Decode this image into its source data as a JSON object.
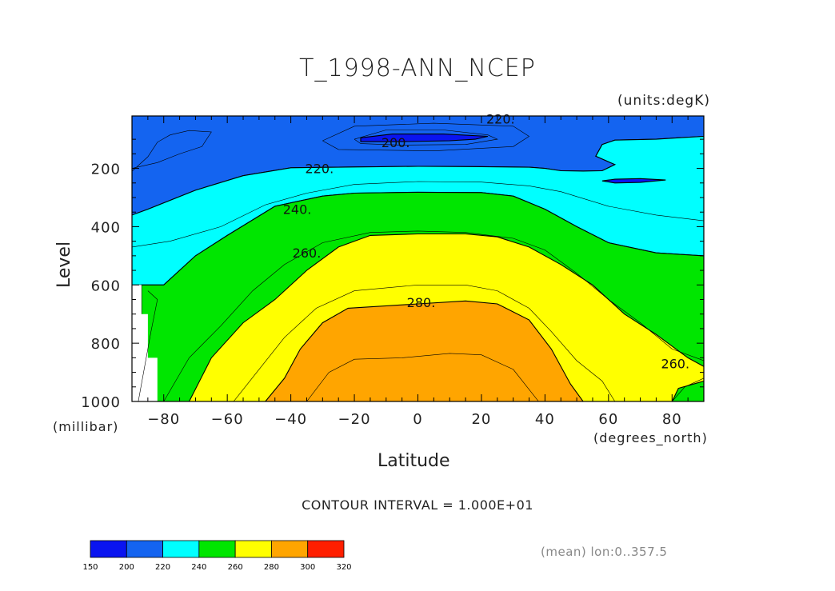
{
  "chart_data": {
    "type": "heatmap",
    "title": "T_1998-ANN_NCEP",
    "units_label": "(units:degK)",
    "xlabel": "Latitude",
    "ylabel": "Level",
    "x_units": "(degrees_north)",
    "y_units": "(millibar)",
    "xlim": [
      -90,
      90
    ],
    "ylim": [
      1000,
      20
    ],
    "x_ticks": [
      -80,
      -60,
      -40,
      -20,
      0,
      20,
      40,
      60,
      80
    ],
    "x_tick_labels": [
      "−80",
      "−60",
      "−40",
      "−20",
      "0",
      "20",
      "40",
      "60",
      "80"
    ],
    "y_ticks": [
      200,
      400,
      600,
      800,
      1000
    ],
    "y_tick_labels": [
      "200",
      "400",
      "600",
      "800",
      "1000"
    ],
    "contour_interval_label": "CONTOUR INTERVAL = 1.000E+01",
    "contour_labels": [
      {
        "text": "220.",
        "lat": 26,
        "lev": 30
      },
      {
        "text": "200.",
        "lat": -7,
        "lev": 110
      },
      {
        "text": "220.",
        "lat": -31,
        "lev": 200
      },
      {
        "text": "240.",
        "lat": -38,
        "lev": 340
      },
      {
        "text": "260.",
        "lat": -35,
        "lev": 490
      },
      {
        "text": "280.",
        "lat": 1,
        "lev": 660
      },
      {
        "text": "260.",
        "lat": 81,
        "lev": 870
      }
    ],
    "colorbar": {
      "levels": [
        150,
        200,
        220,
        240,
        260,
        280,
        300,
        320
      ],
      "level_labels": [
        "150",
        "200",
        "220",
        "240",
        "260",
        "280",
        "300",
        "320"
      ],
      "colors": [
        "#0a14f0",
        "#1464f0",
        "#00ffff",
        "#00e600",
        "#ffff00",
        "#ffa500",
        "#ff1e00"
      ]
    },
    "regions": [
      {
        "band": "<200",
        "color": "#0a14f0",
        "polygon": [
          [
            -18,
            95
          ],
          [
            -8,
            82
          ],
          [
            8,
            82
          ],
          [
            22,
            90
          ],
          [
            18,
            100
          ],
          [
            10,
            105
          ],
          [
            -5,
            108
          ],
          [
            -18,
            108
          ]
        ]
      },
      {
        "band": "<200",
        "color": "#0a14f0",
        "polygon": [
          [
            58,
            243
          ],
          [
            62,
            237
          ],
          [
            70,
            235
          ],
          [
            78,
            240
          ],
          [
            70,
            248
          ],
          [
            62,
            250
          ]
        ]
      },
      {
        "band": "200-220",
        "color": "#1464f0",
        "polygon": [
          [
            -90,
            20
          ],
          [
            90,
            20
          ],
          [
            90,
            90
          ],
          [
            82,
            95
          ],
          [
            75,
            100
          ],
          [
            62,
            103
          ],
          [
            58,
            118
          ],
          [
            56,
            158
          ],
          [
            62,
            187
          ],
          [
            58,
            208
          ],
          [
            52,
            209
          ],
          [
            45,
            208
          ],
          [
            40,
            200
          ],
          [
            35,
            196
          ],
          [
            20,
            194
          ],
          [
            0,
            193
          ],
          [
            -20,
            195
          ],
          [
            -40,
            198
          ],
          [
            -55,
            225
          ],
          [
            -70,
            275
          ],
          [
            -85,
            340
          ],
          [
            -90,
            360
          ]
        ]
      },
      {
        "band": "220-240",
        "color": "#00ffff",
        "polygon": [
          [
            -90,
            360
          ],
          [
            -85,
            340
          ],
          [
            -70,
            275
          ],
          [
            -55,
            225
          ],
          [
            -40,
            198
          ],
          [
            -20,
            195
          ],
          [
            0,
            193
          ],
          [
            20,
            194
          ],
          [
            35,
            196
          ],
          [
            40,
            200
          ],
          [
            45,
            208
          ],
          [
            52,
            209
          ],
          [
            58,
            208
          ],
          [
            62,
            187
          ],
          [
            56,
            158
          ],
          [
            58,
            118
          ],
          [
            62,
            103
          ],
          [
            75,
            100
          ],
          [
            82,
            95
          ],
          [
            90,
            90
          ],
          [
            90,
            500
          ],
          [
            75,
            490
          ],
          [
            60,
            455
          ],
          [
            50,
            400
          ],
          [
            40,
            340
          ],
          [
            30,
            295
          ],
          [
            20,
            283
          ],
          [
            0,
            282
          ],
          [
            -20,
            285
          ],
          [
            -30,
            295
          ],
          [
            -45,
            330
          ],
          [
            -60,
            430
          ],
          [
            -70,
            500
          ],
          [
            -80,
            600
          ],
          [
            -90,
            600
          ]
        ]
      },
      {
        "band": "240-260",
        "color": "#00e600",
        "polygon": [
          [
            -87,
            1000
          ],
          [
            -87,
            600
          ],
          [
            -80,
            600
          ],
          [
            -70,
            500
          ],
          [
            -60,
            430
          ],
          [
            -45,
            330
          ],
          [
            -30,
            295
          ],
          [
            -20,
            285
          ],
          [
            0,
            282
          ],
          [
            20,
            283
          ],
          [
            30,
            295
          ],
          [
            40,
            340
          ],
          [
            50,
            400
          ],
          [
            60,
            455
          ],
          [
            75,
            490
          ],
          [
            90,
            500
          ],
          [
            90,
            1000
          ],
          [
            -72,
            1000
          ]
        ]
      },
      {
        "band": "260-280",
        "color": "#ffff00",
        "polygon": [
          [
            -72,
            1000
          ],
          [
            -65,
            850
          ],
          [
            -55,
            730
          ],
          [
            -45,
            650
          ],
          [
            -35,
            550
          ],
          [
            -25,
            470
          ],
          [
            -15,
            430
          ],
          [
            0,
            425
          ],
          [
            15,
            425
          ],
          [
            25,
            435
          ],
          [
            35,
            470
          ],
          [
            45,
            530
          ],
          [
            55,
            600
          ],
          [
            65,
            700
          ],
          [
            75,
            770
          ],
          [
            85,
            850
          ],
          [
            90,
            880
          ],
          [
            90,
            930
          ],
          [
            82,
            955
          ],
          [
            80,
            1000
          ]
        ]
      },
      {
        "band": "280-290",
        "color": "#ffa500",
        "polygon": [
          [
            -48,
            1000
          ],
          [
            -42,
            920
          ],
          [
            -37,
            820
          ],
          [
            -30,
            730
          ],
          [
            -22,
            680
          ],
          [
            0,
            665
          ],
          [
            15,
            655
          ],
          [
            25,
            665
          ],
          [
            35,
            720
          ],
          [
            42,
            820
          ],
          [
            48,
            940
          ],
          [
            52,
            1000
          ]
        ]
      },
      {
        "band": "missing",
        "color": "#ffffff",
        "polygon": [
          [
            -90,
            600
          ],
          [
            -87,
            600
          ],
          [
            -87,
            700
          ],
          [
            -85,
            700
          ],
          [
            -85,
            850
          ],
          [
            -82,
            850
          ],
          [
            -82,
            1000
          ],
          [
            -90,
            1000
          ]
        ]
      }
    ],
    "thin_contours": [
      [
        [
          -90,
          210
        ],
        [
          -85,
          160
        ],
        [
          -82,
          110
        ],
        [
          -78,
          85
        ],
        [
          -72,
          70
        ],
        [
          -65,
          75
        ],
        [
          -68,
          125
        ],
        [
          -75,
          150
        ],
        [
          -82,
          180
        ],
        [
          -90,
          200
        ]
      ],
      [
        [
          -20,
          100
        ],
        [
          -10,
          68
        ],
        [
          8,
          68
        ],
        [
          22,
          85
        ],
        [
          25,
          100
        ],
        [
          15,
          118
        ],
        [
          -5,
          120
        ],
        [
          -18,
          115
        ],
        [
          -20,
          100
        ]
      ],
      [
        [
          -30,
          105
        ],
        [
          -20,
          55
        ],
        [
          5,
          45
        ],
        [
          30,
          55
        ],
        [
          35,
          90
        ],
        [
          30,
          125
        ],
        [
          5,
          140
        ],
        [
          -25,
          135
        ],
        [
          -30,
          105
        ]
      ],
      [
        [
          -90,
          470
        ],
        [
          -78,
          450
        ],
        [
          -62,
          400
        ],
        [
          -48,
          325
        ],
        [
          -35,
          285
        ],
        [
          -20,
          255
        ],
        [
          0,
          245
        ],
        [
          20,
          247
        ],
        [
          35,
          260
        ],
        [
          45,
          280
        ],
        [
          60,
          330
        ],
        [
          75,
          360
        ],
        [
          90,
          380
        ]
      ],
      [
        [
          -80,
          1000
        ],
        [
          -72,
          850
        ],
        [
          -62,
          740
        ],
        [
          -52,
          620
        ],
        [
          -42,
          530
        ],
        [
          -30,
          455
        ],
        [
          -15,
          420
        ],
        [
          0,
          415
        ],
        [
          15,
          420
        ],
        [
          30,
          440
        ],
        [
          40,
          480
        ],
        [
          50,
          560
        ],
        [
          60,
          650
        ],
        [
          70,
          730
        ],
        [
          80,
          820
        ],
        [
          90,
          860
        ]
      ],
      [
        [
          -58,
          1000
        ],
        [
          -50,
          890
        ],
        [
          -42,
          780
        ],
        [
          -32,
          680
        ],
        [
          -20,
          620
        ],
        [
          0,
          600
        ],
        [
          15,
          600
        ],
        [
          25,
          620
        ],
        [
          35,
          680
        ],
        [
          42,
          760
        ],
        [
          50,
          860
        ],
        [
          58,
          930
        ],
        [
          62,
          1000
        ]
      ],
      [
        [
          -35,
          1000
        ],
        [
          -28,
          900
        ],
        [
          -20,
          855
        ],
        [
          -5,
          850
        ],
        [
          10,
          835
        ],
        [
          20,
          840
        ],
        [
          30,
          890
        ],
        [
          38,
          1000
        ]
      ],
      [
        [
          -88,
          1000
        ],
        [
          -84,
          760
        ],
        [
          -82,
          650
        ],
        [
          -85,
          620
        ]
      ],
      [
        [
          90,
          920
        ],
        [
          84,
          950
        ],
        [
          80,
          1000
        ]
      ]
    ]
  },
  "footer": {
    "mean_label": "(mean) lon:0..357.5"
  }
}
